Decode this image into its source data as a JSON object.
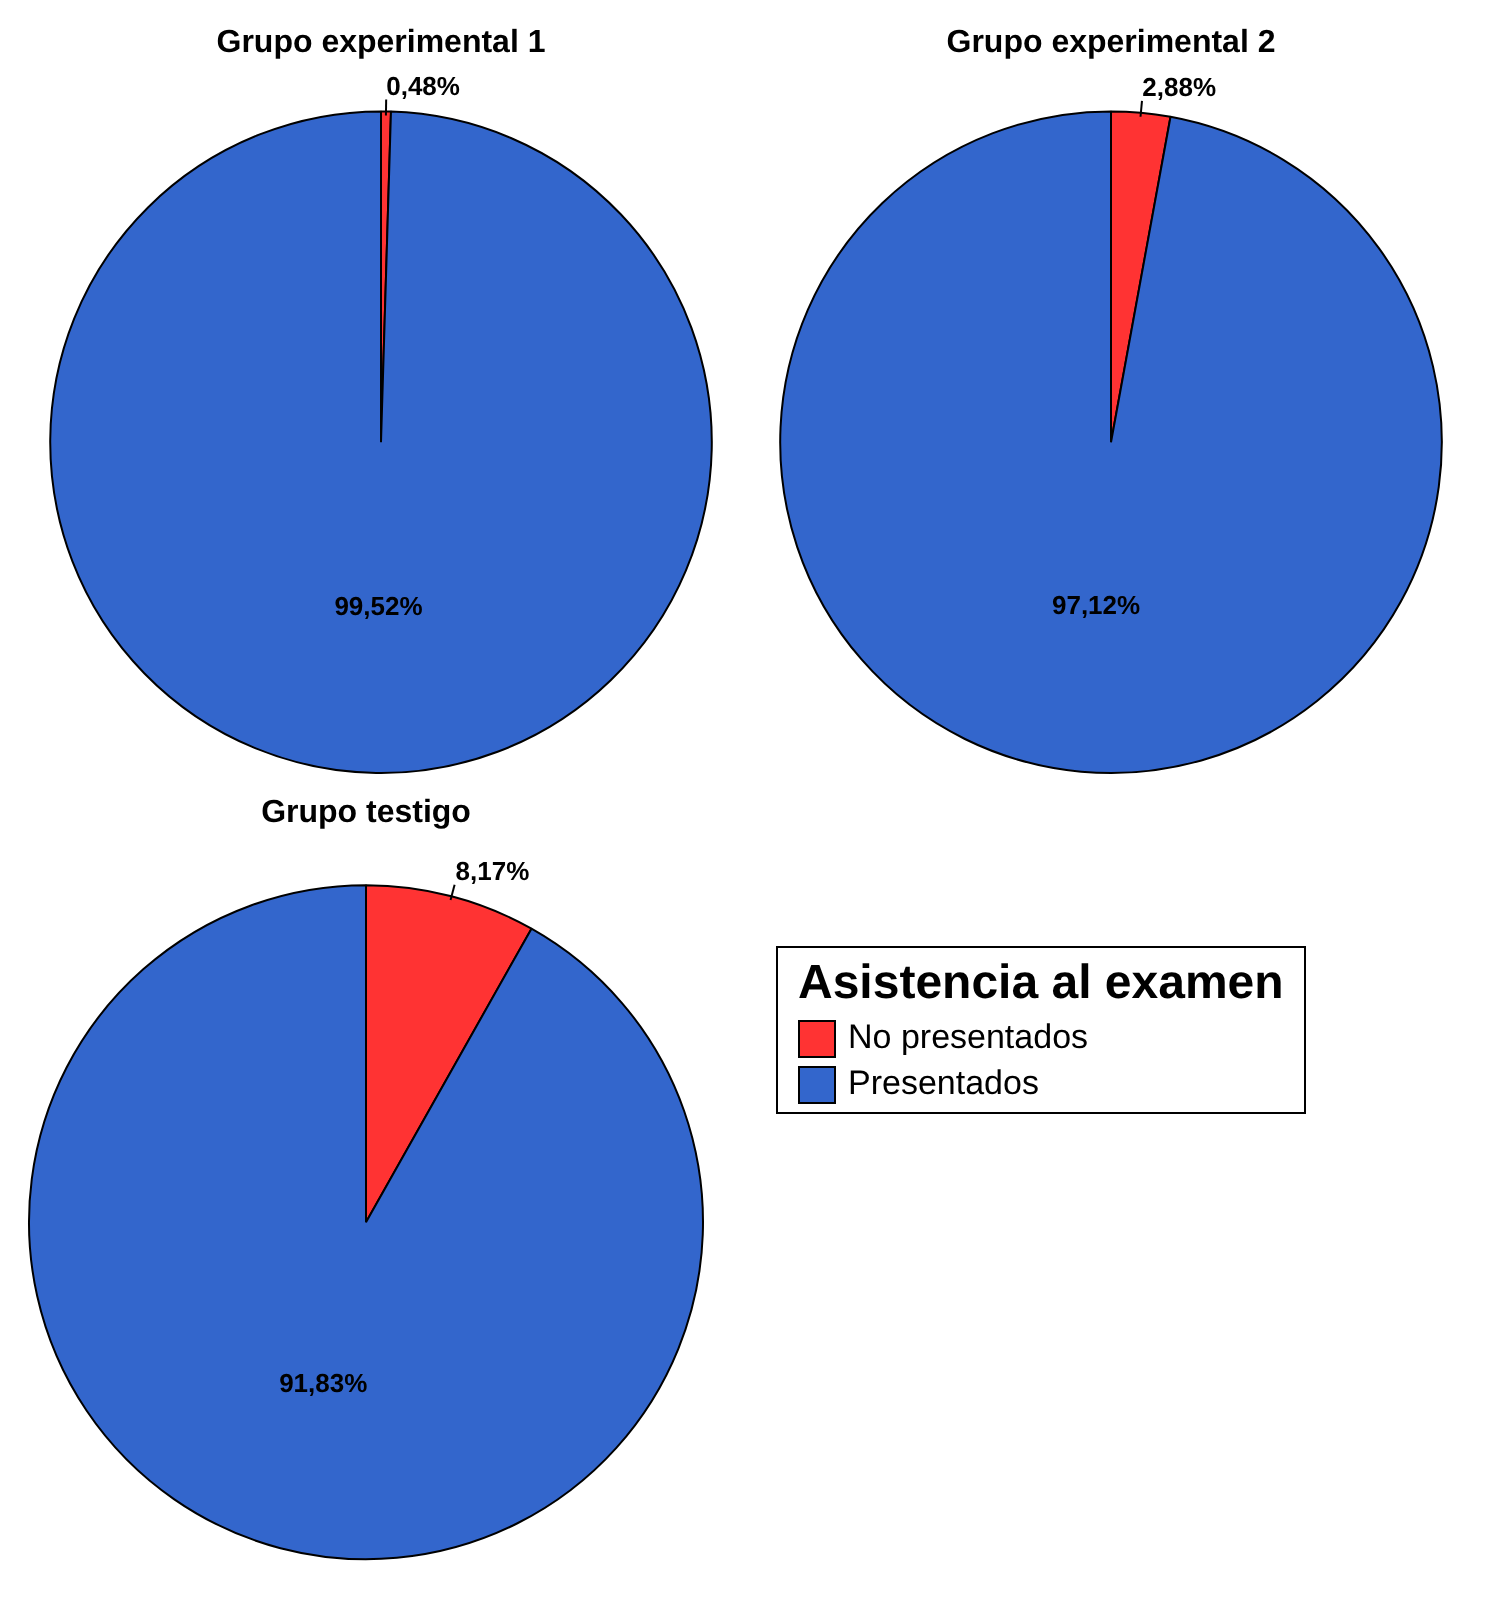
{
  "chart_data": [
    {
      "type": "pie",
      "title": "Grupo experimental 1",
      "categories": [
        null,
        null
      ],
      "values": [
        0.48,
        99.52
      ],
      "colors": [
        "#ff3333",
        "#3366cc"
      ],
      "value_labels": [
        "0,48%",
        "99,52%"
      ]
    },
    {
      "type": "pie",
      "title": "Grupo experimental 2",
      "categories": [
        null,
        null
      ],
      "values": [
        2.88,
        97.12
      ],
      "colors": [
        "#ff3333",
        "#3366cc"
      ],
      "value_labels": [
        "2,88%",
        "97,12%"
      ]
    },
    {
      "type": "pie",
      "title": "Grupo testigo",
      "categories": [
        "No presentados",
        "Presentados"
      ],
      "values": [
        8.17,
        91.83
      ],
      "colors": [
        "#ff3333",
        "#3366cc"
      ],
      "value_labels": [
        "8,17%",
        "91,83%"
      ],
      "legend": "right",
      "legend_title": "Asistencia al examen"
    }
  ]
}
